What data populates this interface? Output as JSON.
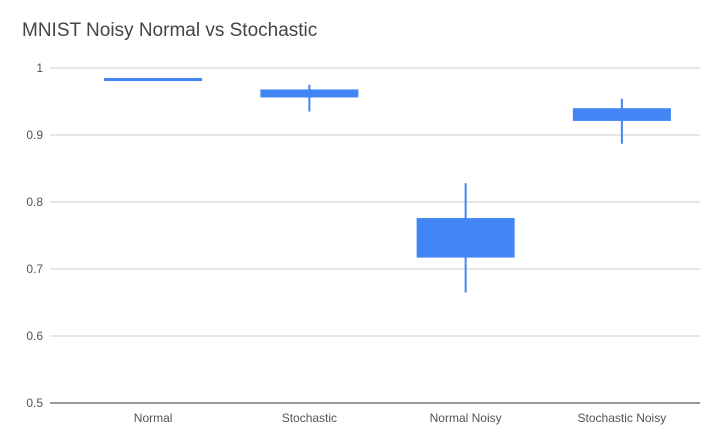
{
  "chart_data": {
    "type": "candlestick",
    "title": "MNIST Noisy Normal vs Stochastic",
    "categories": [
      "Normal",
      "Stochastic",
      "Normal Noisy",
      "Stochastic Noisy"
    ],
    "ylim": [
      0.5,
      1
    ],
    "yticks": [
      0.5,
      0.6,
      0.7,
      0.8,
      0.9,
      1
    ],
    "ytick_labels": [
      "0.5",
      "0.6",
      "0.7",
      "0.8",
      "0.9",
      "1"
    ],
    "grid": true,
    "color": "#4285f4",
    "boxes": [
      {
        "category": "Normal",
        "low": 0.983,
        "open": 0.983,
        "close": 0.985,
        "high": 0.985
      },
      {
        "category": "Stochastic",
        "low": 0.935,
        "open": 0.956,
        "close": 0.968,
        "high": 0.975
      },
      {
        "category": "Normal Noisy",
        "low": 0.665,
        "open": 0.717,
        "close": 0.776,
        "high": 0.828
      },
      {
        "category": "Stochastic Noisy",
        "low": 0.887,
        "open": 0.921,
        "close": 0.94,
        "high": 0.954
      }
    ]
  }
}
